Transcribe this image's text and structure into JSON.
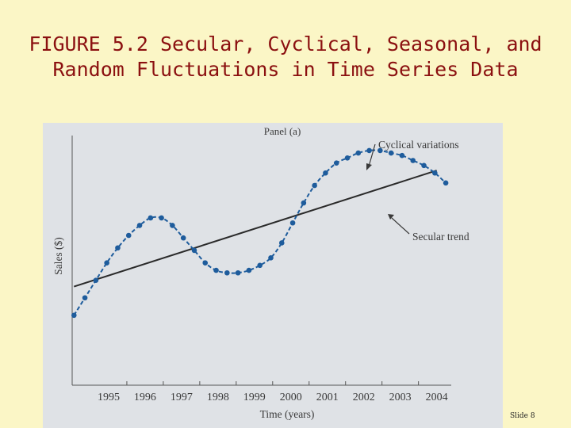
{
  "slide": {
    "title_line1": "FIGURE 5.2 Secular, Cyclical, Seasonal, and",
    "title_line2": "Random Fluctuations in Time Series Data",
    "slide_number": "Slide 8"
  },
  "colors": {
    "background": "#fbf6c6",
    "title": "#8b1010",
    "panel": "#dfe2e6",
    "cyclical_series": "#1e5c9c",
    "trend_series": "#2a2a2a"
  },
  "chart_data": {
    "type": "line",
    "panel_title": "Panel (a)",
    "xlabel": "Time (years)",
    "ylabel": "Sales ($)",
    "xlim": [
      1994.5,
      2004.9
    ],
    "ylim": [
      0,
      100
    ],
    "grid": false,
    "x_ticks": [
      "1995",
      "1996",
      "1997",
      "1998",
      "1999",
      "2000",
      "2001",
      "2002",
      "2003",
      "2004"
    ],
    "annotations": [
      {
        "text": "Cyclical variations",
        "target": "cyclical"
      },
      {
        "text": "Secular trend",
        "target": "trend"
      }
    ],
    "series": [
      {
        "name": "Cyclical variations",
        "x": [
          1994.55,
          1994.85,
          1995.15,
          1995.45,
          1995.75,
          1996.05,
          1996.35,
          1996.65,
          1996.95,
          1997.25,
          1997.55,
          1997.85,
          1998.15,
          1998.45,
          1998.75,
          1999.05,
          1999.35,
          1999.65,
          1999.95,
          2000.25,
          2000.55,
          2000.85,
          2001.15,
          2001.45,
          2001.75,
          2002.05,
          2002.35,
          2002.65,
          2002.95,
          2003.25,
          2003.55,
          2003.85,
          2004.15,
          2004.45,
          2004.75
        ],
        "y": [
          28,
          35,
          42,
          49,
          55,
          60,
          64,
          67,
          67,
          64,
          59,
          54,
          49,
          46,
          45,
          45,
          46,
          48,
          51,
          57,
          65,
          73,
          80,
          85,
          89,
          91,
          93,
          94,
          94,
          93,
          92,
          90,
          88,
          85,
          81
        ]
      },
      {
        "name": "Secular trend",
        "x": [
          1994.55,
          2004.5
        ],
        "y": [
          39.5,
          86
        ]
      }
    ]
  }
}
